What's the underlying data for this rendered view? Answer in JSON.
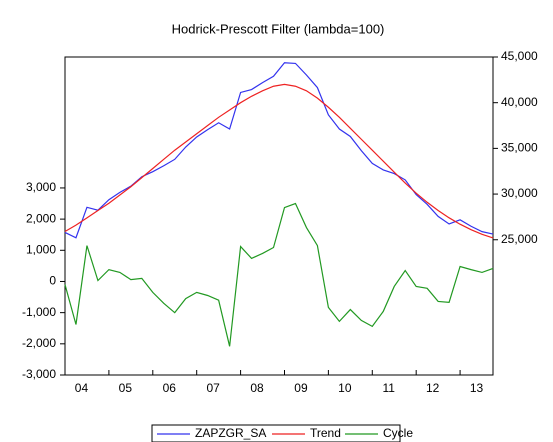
{
  "chart_data": {
    "type": "line",
    "title": "Hodrick-Prescott Filter (lambda=100)",
    "categories": [
      "04",
      null,
      null,
      null,
      "05",
      null,
      null,
      null,
      "06",
      null,
      null,
      null,
      "07",
      null,
      null,
      null,
      "08",
      null,
      null,
      null,
      "09",
      null,
      null,
      null,
      "10",
      null,
      null,
      null,
      "11",
      null,
      null,
      null,
      "12",
      null,
      null,
      null,
      "13",
      null,
      null,
      null
    ],
    "series": [
      {
        "name": "ZAPZGR_SA",
        "color": "#3333ee",
        "axis": "y2",
        "values": [
          25800,
          25220,
          28550,
          28230,
          29380,
          30190,
          30860,
          31900,
          32450,
          33100,
          33800,
          35150,
          36250,
          37050,
          37800,
          37120,
          41120,
          41440,
          42200,
          42890,
          44370,
          44300,
          43030,
          41650,
          38670,
          37120,
          36300,
          34750,
          33360,
          32640,
          32240,
          31550,
          29940,
          28880,
          27560,
          26730,
          27180,
          26480,
          25890,
          25620
        ]
      },
      {
        "name": "Trend",
        "color": "#ee2222",
        "axis": "y2",
        "values": [
          25900,
          26600,
          27400,
          28200,
          29000,
          29900,
          30800,
          31800,
          32800,
          33800,
          34800,
          35700,
          36600,
          37500,
          38400,
          39200,
          40000,
          40700,
          41300,
          41800,
          42000,
          41800,
          41300,
          40500,
          39500,
          38400,
          37200,
          36000,
          34800,
          33600,
          32400,
          31200,
          30100,
          29100,
          28200,
          27400,
          26700,
          26100,
          25600,
          25200
        ]
      },
      {
        "name": "Cycle",
        "color": "#229922",
        "values": [
          -100,
          -1380,
          1150,
          30,
          380,
          290,
          60,
          100,
          -350,
          -700,
          -1000,
          -550,
          -350,
          -450,
          -600,
          -2080,
          1120,
          740,
          900,
          1090,
          2370,
          2500,
          1730,
          1150,
          -830,
          -1280,
          -900,
          -1250,
          -1440,
          -960,
          -160,
          350,
          -160,
          -220,
          -640,
          -670,
          480,
          380,
          290,
          420
        ]
      }
    ],
    "ylim": [
      -3000,
      7200
    ],
    "yticks": [
      {
        "value": -3000,
        "label": "-3,000"
      },
      {
        "value": -2000,
        "label": "-2,000"
      },
      {
        "value": -1000,
        "label": "-1,000"
      },
      0,
      {
        "value": 1000,
        "label": "1,000"
      },
      {
        "value": 2000,
        "label": "2,000"
      },
      {
        "value": 3000,
        "label": "3,000"
      }
    ],
    "y2lim": [
      10200,
      45000
    ],
    "y2ticks": [
      {
        "value": 25000,
        "label": "25,000"
      },
      {
        "value": 30000,
        "label": "30,000"
      },
      {
        "value": 35000,
        "label": "35,000"
      },
      {
        "value": 40000,
        "label": "40,000"
      },
      {
        "value": 45000,
        "label": "45,000"
      }
    ],
    "legend": "bottom"
  }
}
